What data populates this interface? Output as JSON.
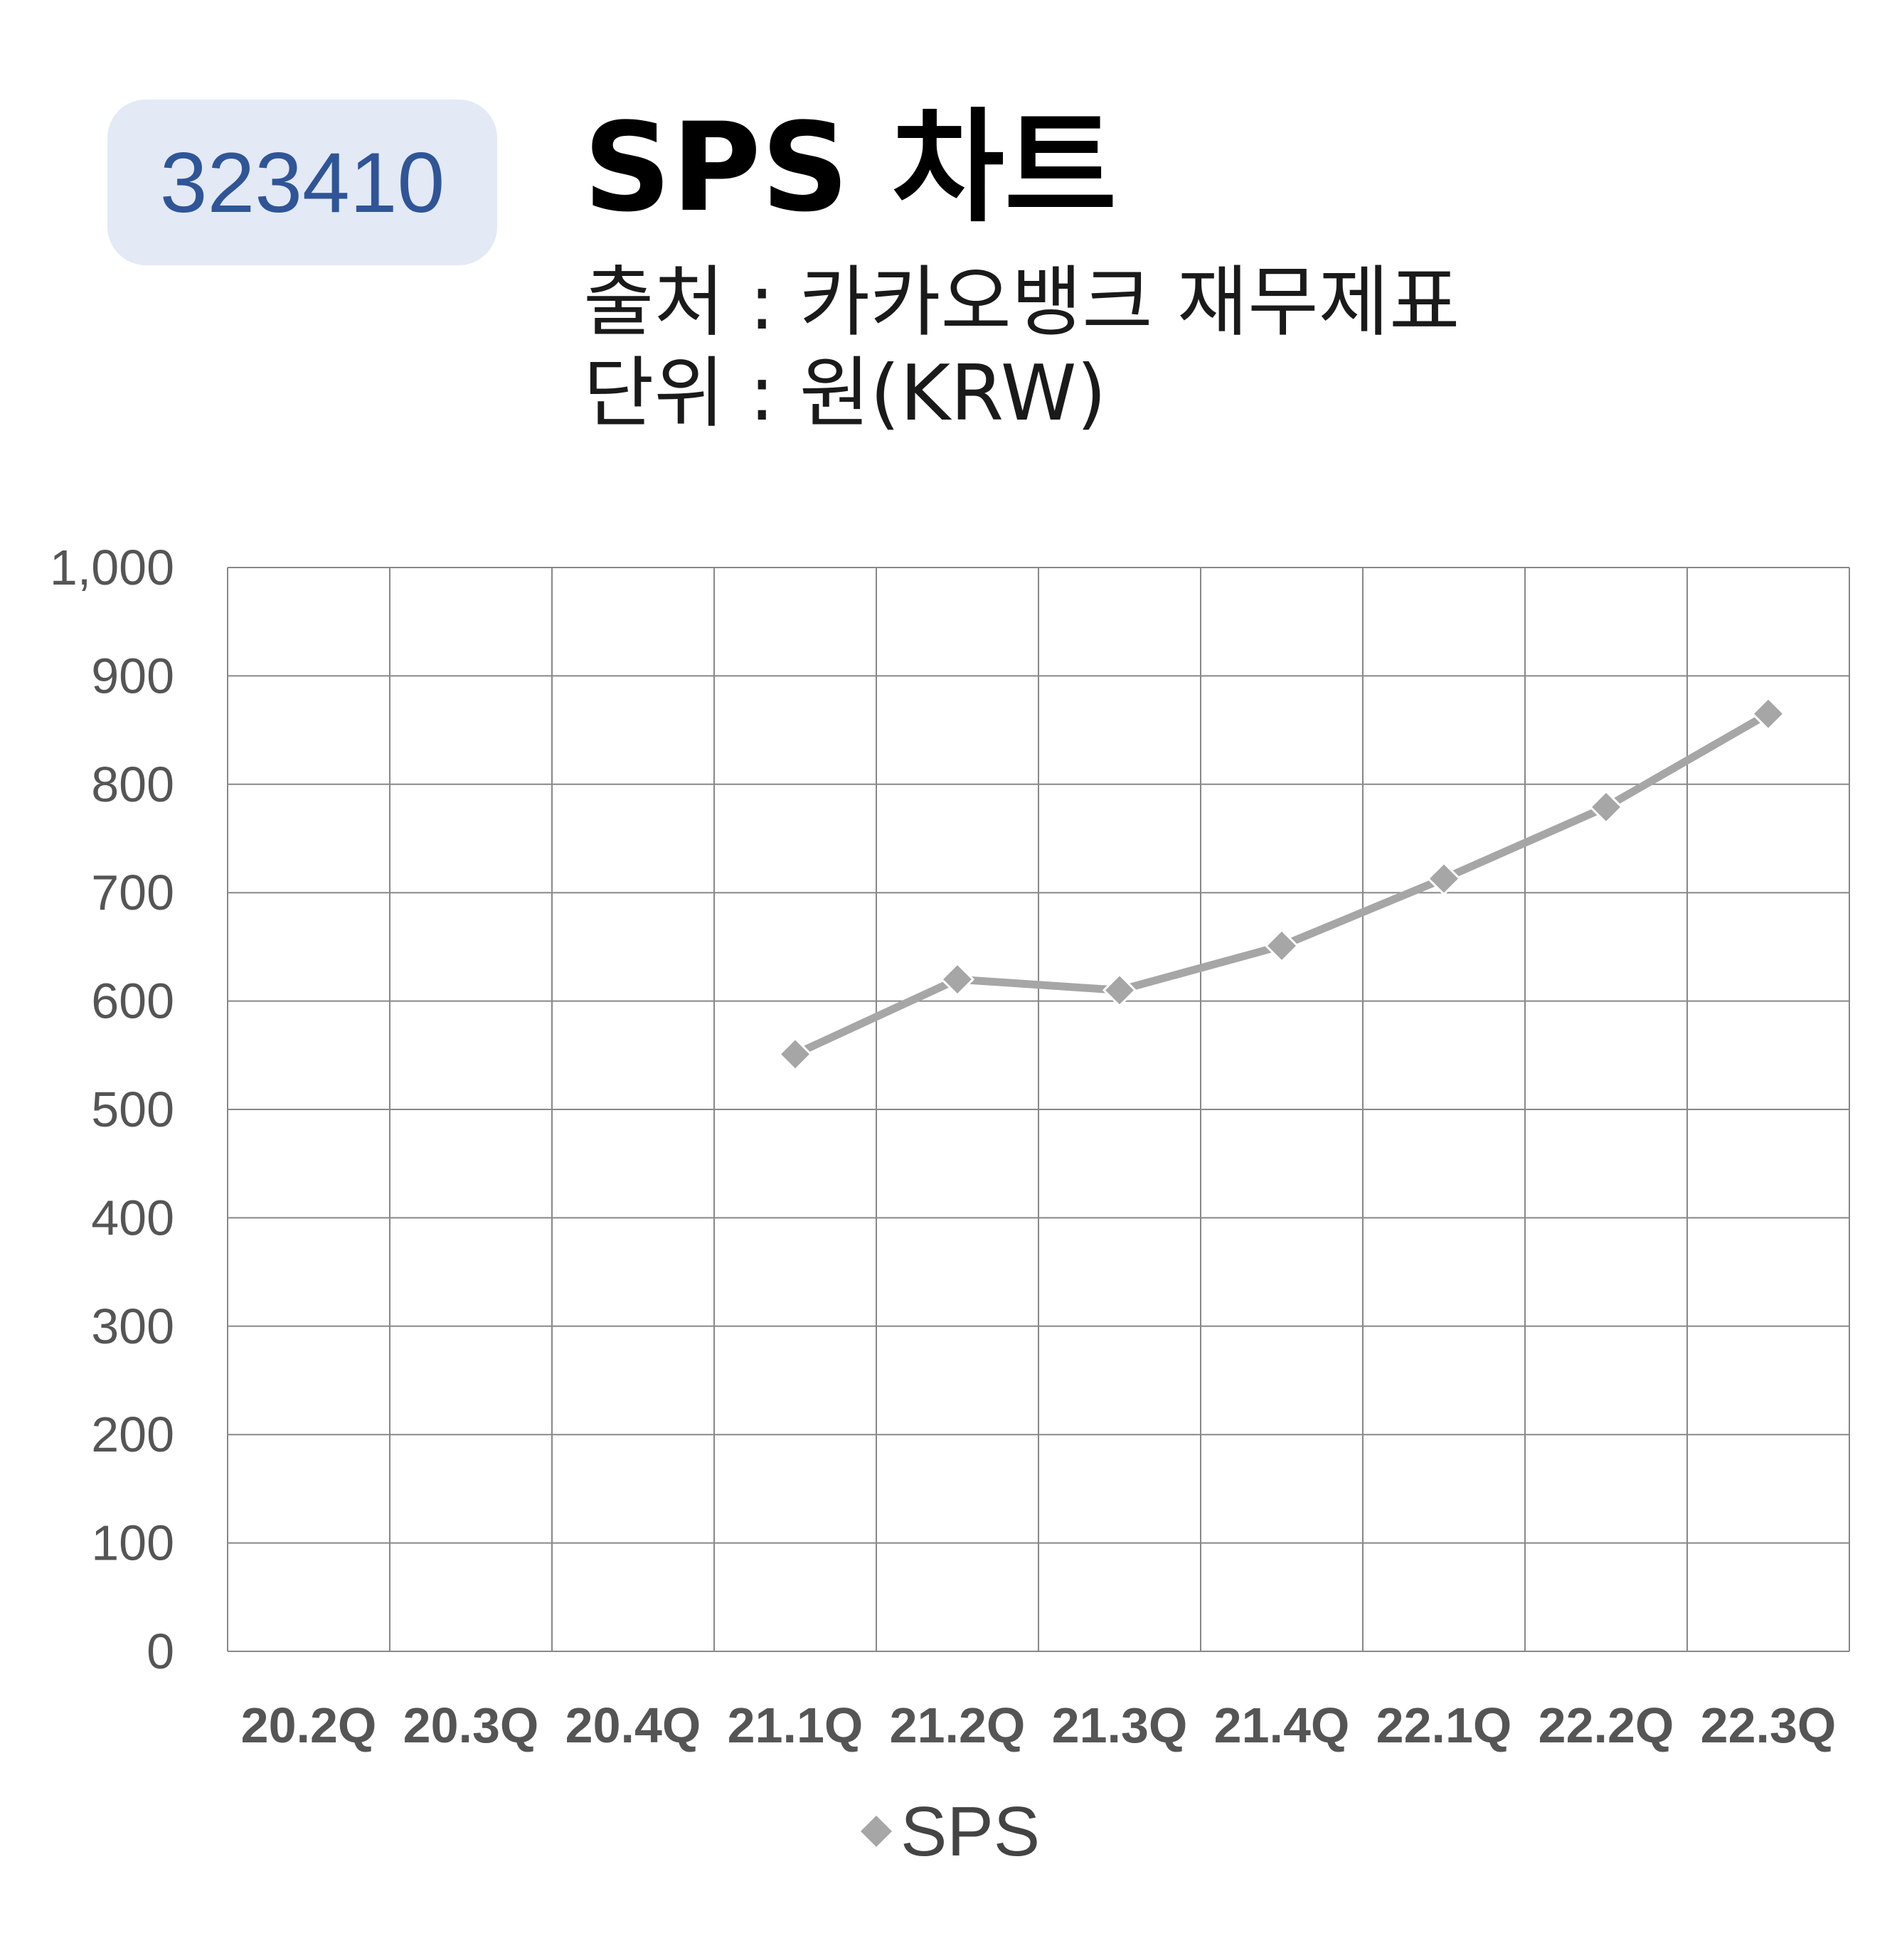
{
  "badge": {
    "code": "323410"
  },
  "header": {
    "title": "SPS 차트",
    "source": "출처 : 카카오뱅크 재무제표",
    "unit": "단위 : 원(KRW)"
  },
  "colors": {
    "badge_bg": "#e3e9f5",
    "badge_text": "#2f5597",
    "series_line": "#a6a6a6",
    "grid": "#888888"
  },
  "chart_data": {
    "type": "line",
    "categories": [
      "20.2Q",
      "20.3Q",
      "20.4Q",
      "21.1Q",
      "21.2Q",
      "21.3Q",
      "21.4Q",
      "22.1Q",
      "22.2Q",
      "22.3Q"
    ],
    "series": [
      {
        "name": "SPS",
        "values": [
          null,
          null,
          null,
          551,
          620,
          610,
          651,
          713,
          779,
          865
        ],
        "marker": "diamond"
      }
    ],
    "yticks": [
      "0",
      "100",
      "200",
      "300",
      "400",
      "500",
      "600",
      "700",
      "800",
      "900",
      "1,000"
    ],
    "ylim": [
      0,
      1000
    ],
    "grid": true,
    "legend": "bottom-center"
  }
}
